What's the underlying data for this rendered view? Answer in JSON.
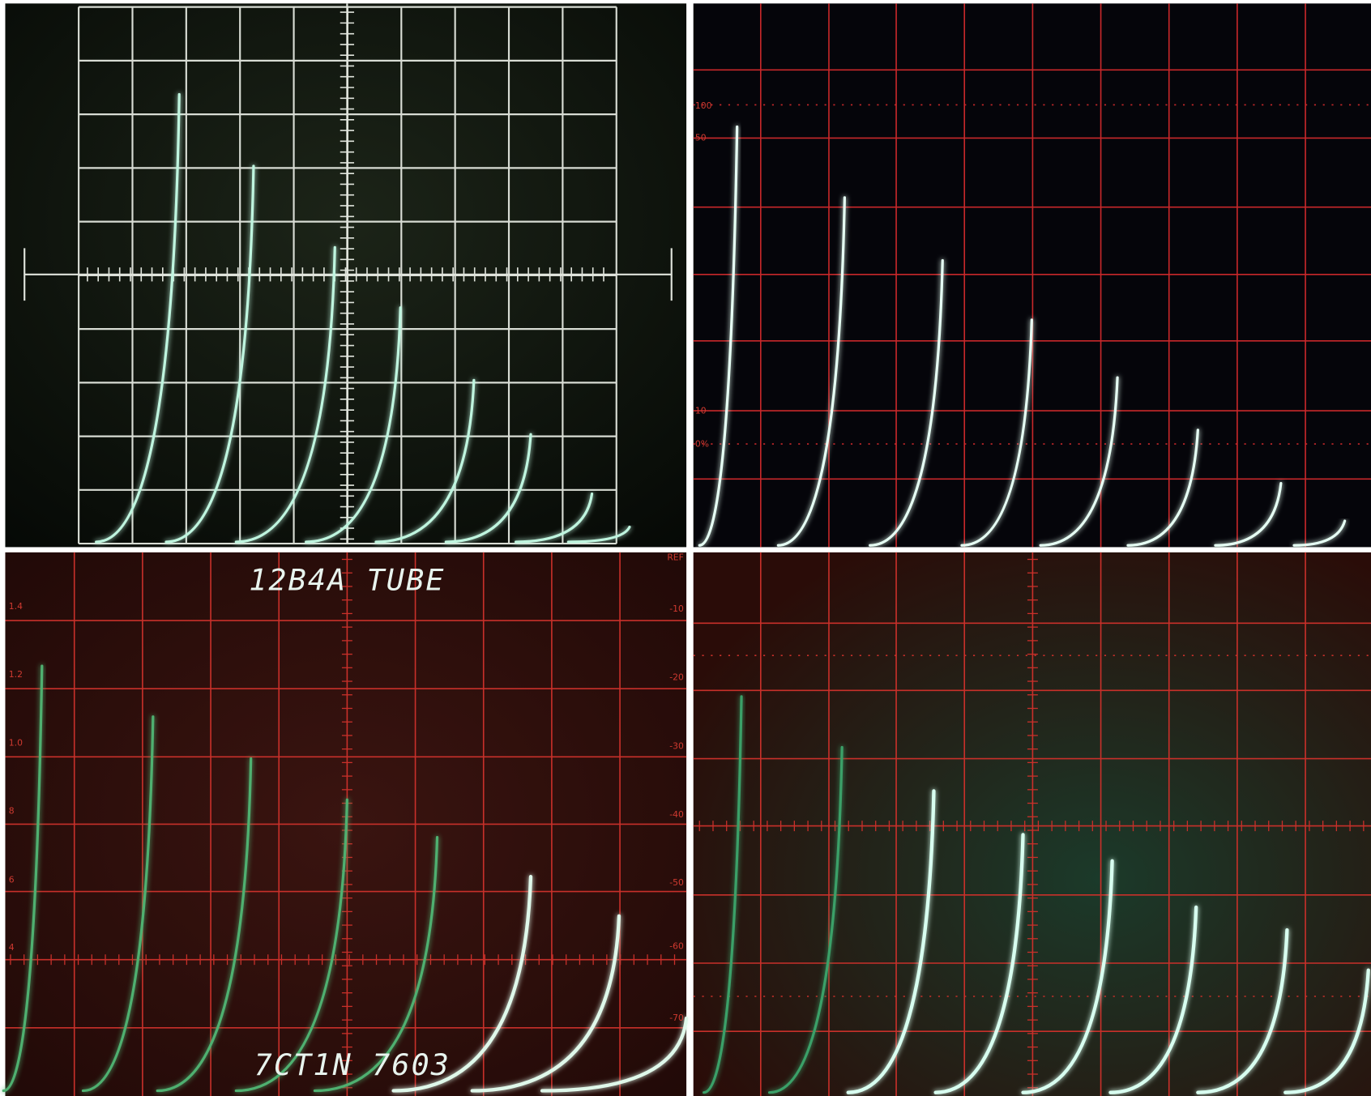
{
  "top_right": {
    "scale_labels": [
      "100",
      "50",
      "10",
      "0%"
    ]
  },
  "bottom_left": {
    "title": "12B4A TUBE",
    "footer": "7CT1N 7603",
    "left_scale": [
      "1.4",
      "1.2",
      "1.0",
      "8",
      "6",
      "4"
    ],
    "right_scale": [
      "REF",
      "-10",
      "-20",
      "-30",
      "-40",
      "-50",
      "-60",
      "-70"
    ]
  }
}
